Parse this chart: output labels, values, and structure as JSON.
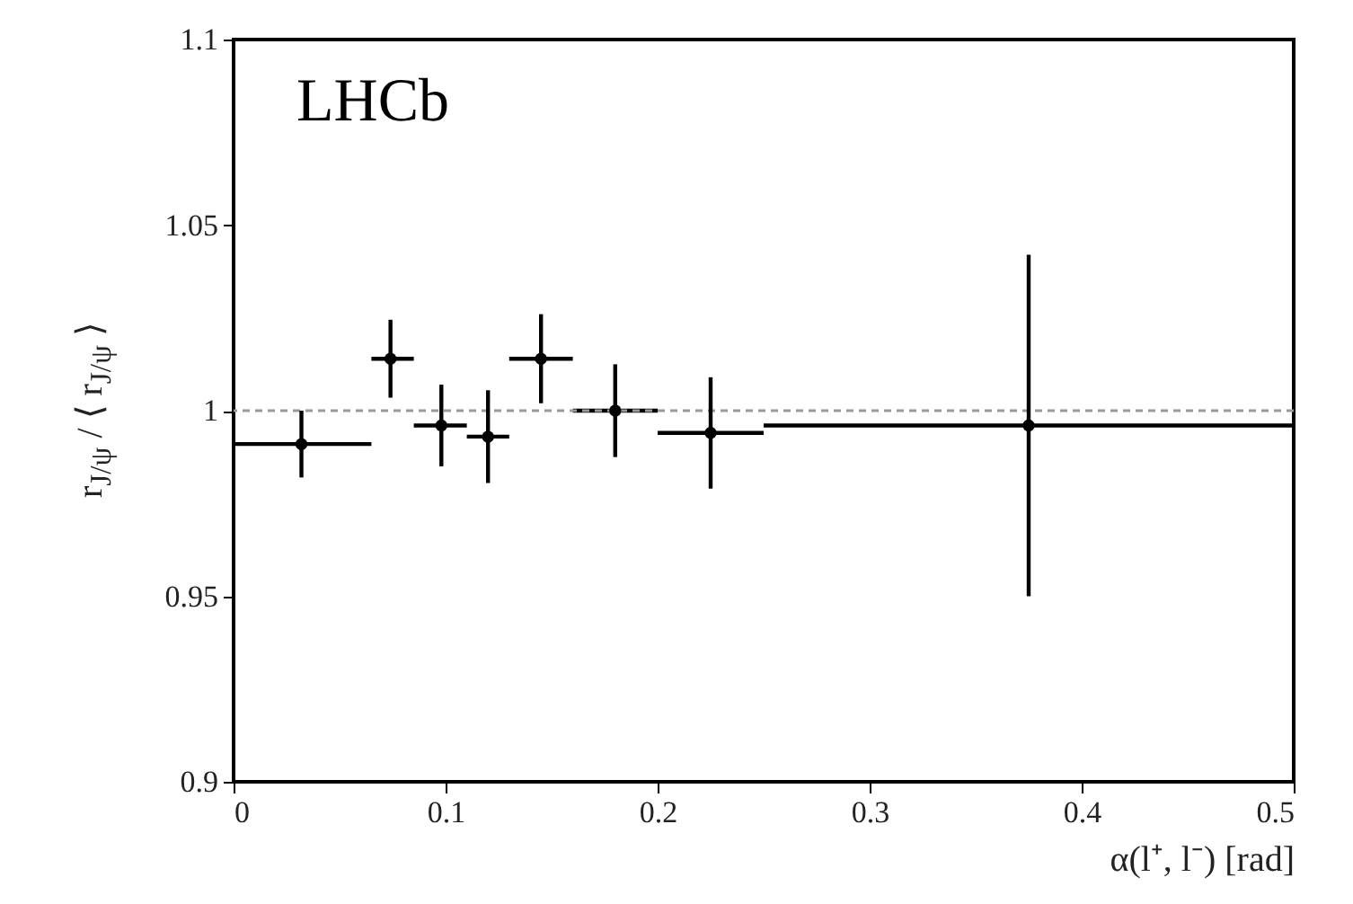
{
  "chart_data": {
    "type": "scatter",
    "xlabel": "α(l⁺, l⁻) [rad]",
    "ylabel": "r$_{J/ψ}$ / ⟨ r$_{J/ψ}$ ⟩",
    "annotations": [
      "LHCb"
    ],
    "x": [
      0.032,
      0.074,
      0.098,
      0.12,
      0.145,
      0.18,
      0.225,
      0.375
    ],
    "series": [
      {
        "color": "#000000",
        "values": [
          0.991,
          1.014,
          0.996,
          0.993,
          1.014,
          1.0,
          0.994,
          0.996
        ],
        "errors": [
          0.009,
          0.0105,
          0.011,
          0.0125,
          0.012,
          0.0125,
          0.015,
          0.046
        ],
        "xerrors": [
          [
            0,
            0.065
          ],
          [
            0.065,
            0.085
          ],
          [
            0.085,
            0.11
          ],
          [
            0.11,
            0.13
          ],
          [
            0.13,
            0.16
          ],
          [
            0.16,
            0.2
          ],
          [
            0.2,
            0.25
          ],
          [
            0.25,
            0.5
          ]
        ]
      }
    ],
    "xlim": [
      0,
      0.5
    ],
    "xticks": [
      0,
      0.1,
      0.2,
      0.3,
      0.4,
      0.5
    ],
    "ylim": [
      0.9,
      1.1
    ],
    "yticks": [
      0.9,
      0.95,
      1,
      1.05,
      1.1
    ],
    "ref_lines": [
      {
        "axis": "y",
        "value": 1,
        "color": "#999999",
        "line_style": "dashed"
      }
    ],
    "marker": "circle",
    "grid": false
  }
}
